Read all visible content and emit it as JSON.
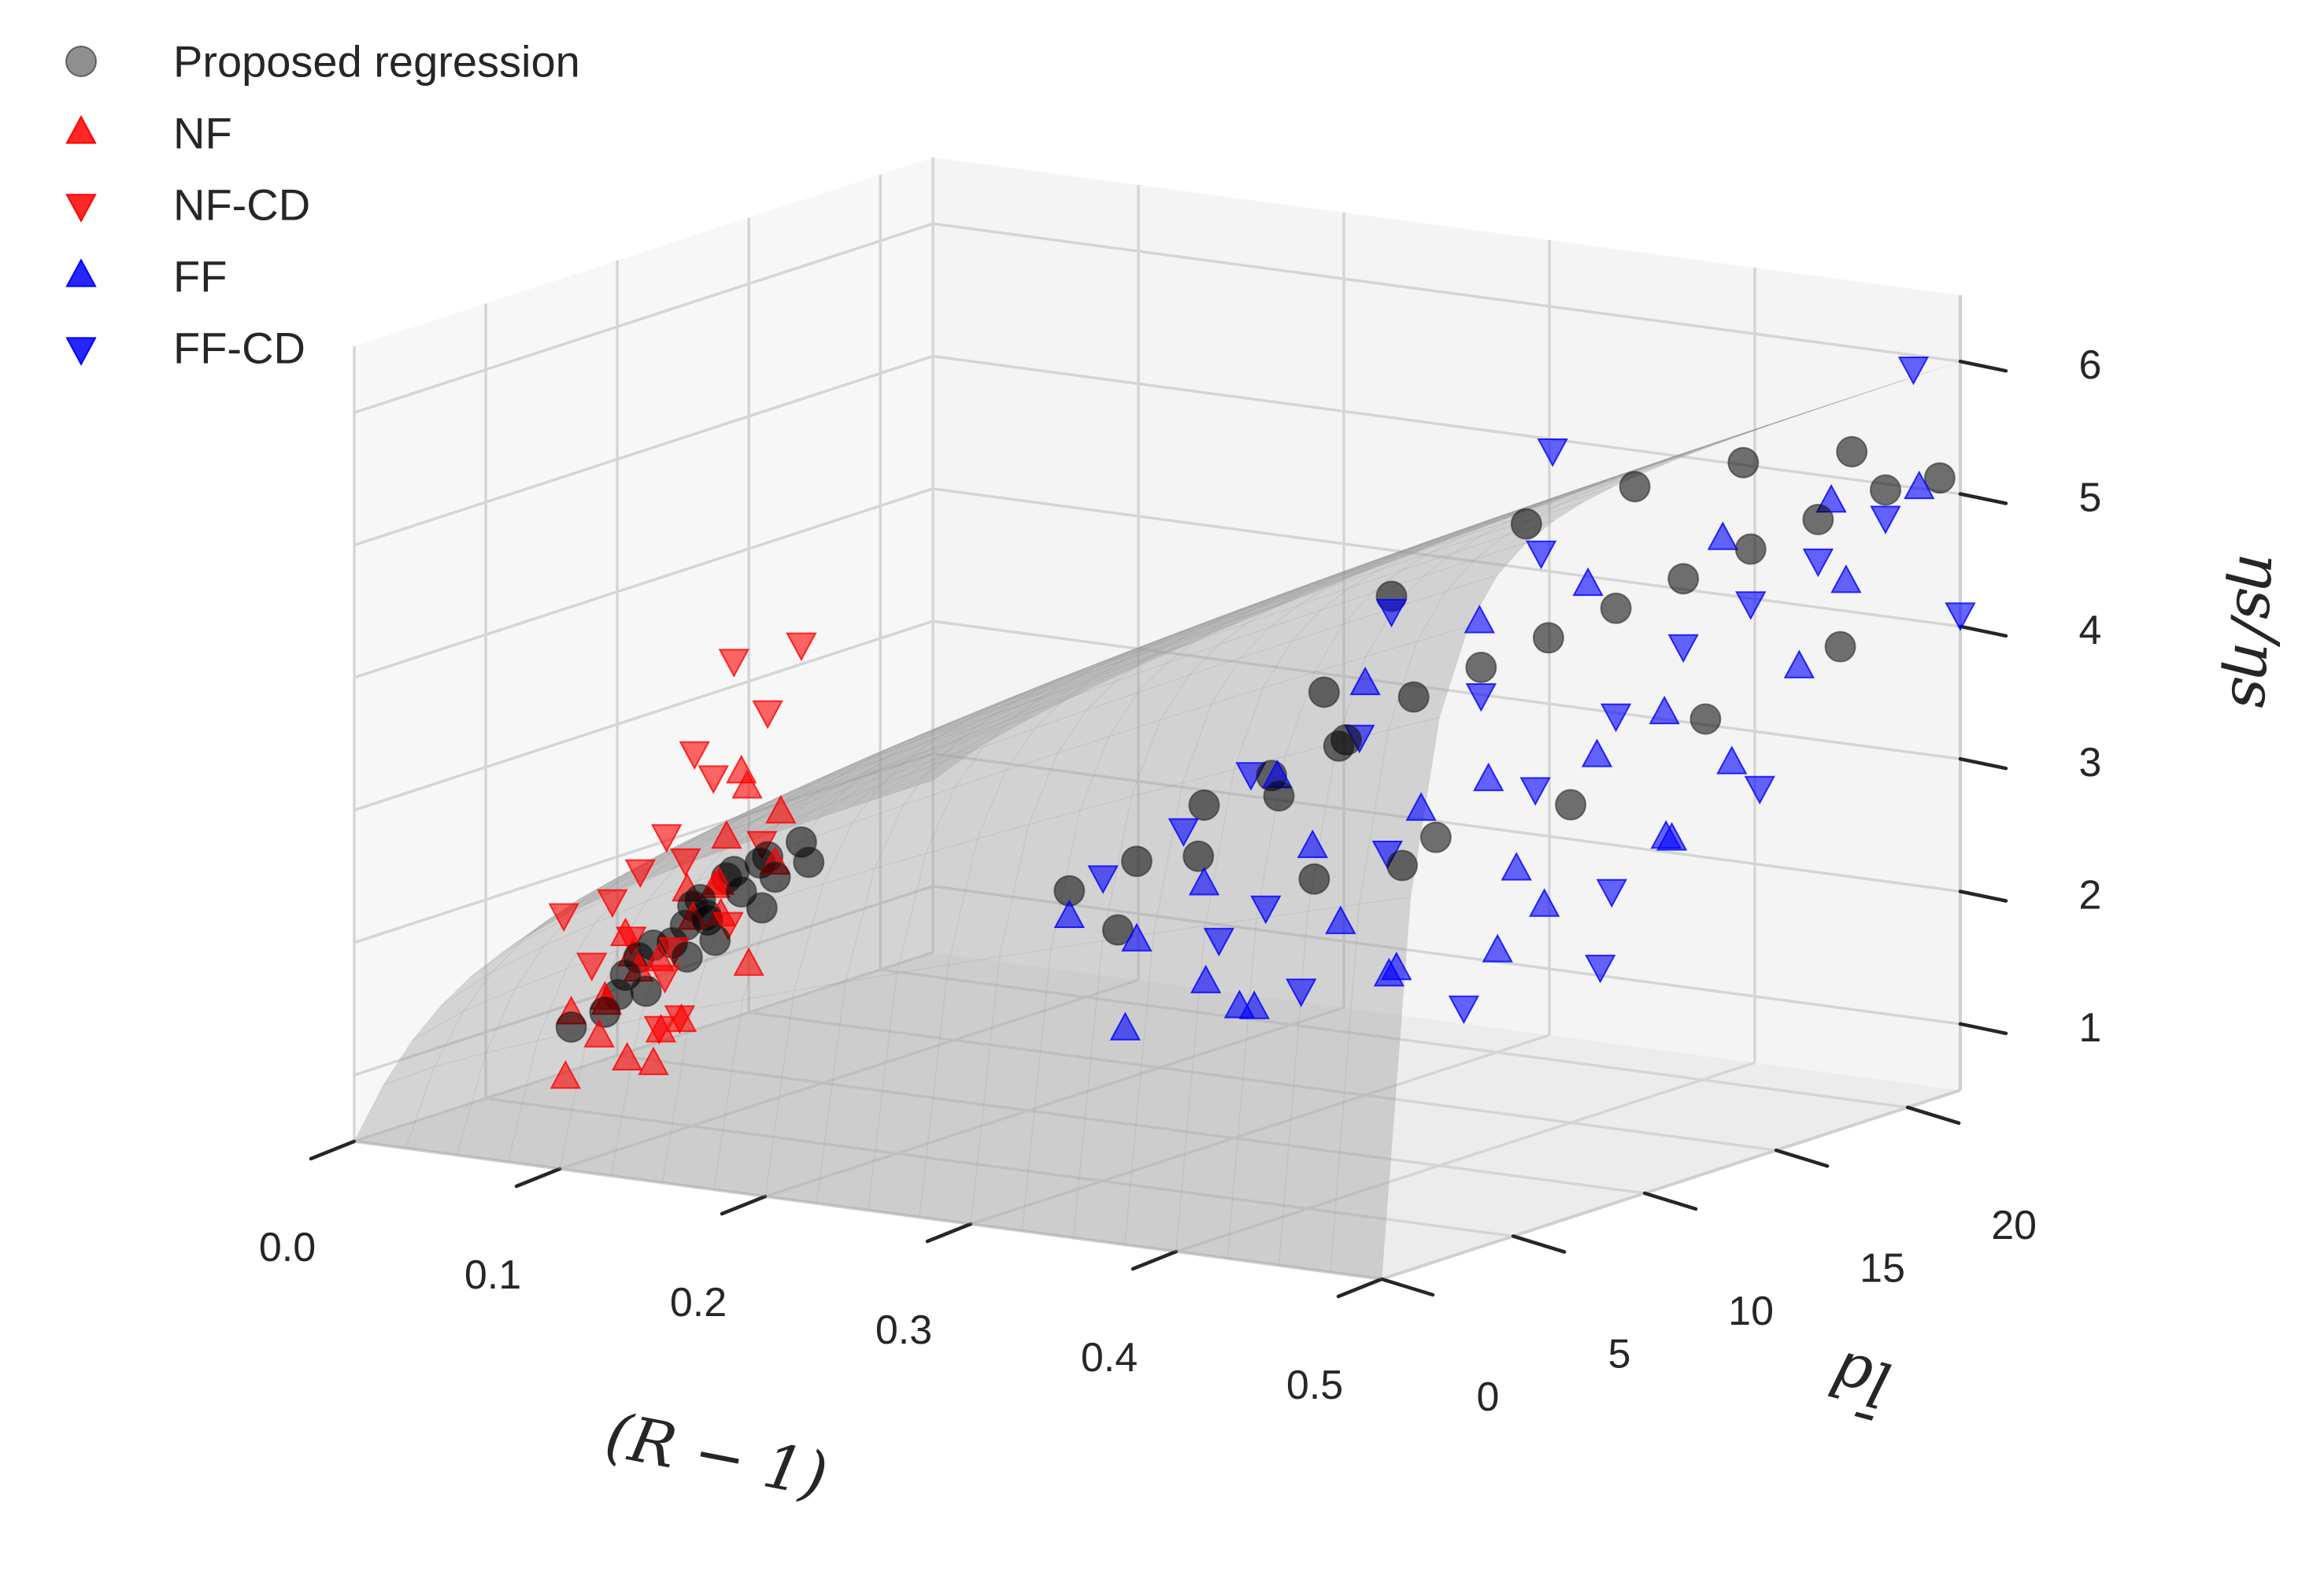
{
  "chart_data": {
    "type": "scatter",
    "projection": "3d",
    "title": "",
    "xlabel": "(R − 1)",
    "ylabel": "l̄d",
    "zlabel": "ηs/ηs",
    "xlim": [
      0.0,
      0.5
    ],
    "ylim": [
      0,
      22
    ],
    "zlim": [
      0.5,
      6.5
    ],
    "xticks": [
      "0.0",
      "0.1",
      "0.2",
      "0.3",
      "0.4",
      "0.5"
    ],
    "yticks": [
      "0",
      "5",
      "10",
      "15",
      "20"
    ],
    "zticks": [
      "1",
      "2",
      "3",
      "4",
      "5",
      "6"
    ],
    "grid": true,
    "legend_position": "top-left",
    "legend": [
      {
        "label": "Proposed regression",
        "marker": "circle",
        "color": "#444444"
      },
      {
        "label": "NF",
        "marker": "triangle-up",
        "color": "#ff0000"
      },
      {
        "label": "NF-CD",
        "marker": "triangle-down",
        "color": "#ff0000"
      },
      {
        "label": "FF",
        "marker": "triangle-up",
        "color": "#0000ff"
      },
      {
        "label": "FF-CD",
        "marker": "triangle-down",
        "color": "#0000ff"
      }
    ],
    "series": [
      {
        "name": "NF",
        "marker": "triangle-up",
        "color": "#ff0000",
        "points": [
          [
            0.08,
            2.0,
            1.5
          ],
          [
            0.09,
            2.5,
            1.6
          ],
          [
            0.1,
            3.0,
            1.8
          ],
          [
            0.1,
            1.5,
            1.4
          ],
          [
            0.11,
            2.0,
            2.0
          ],
          [
            0.12,
            3.5,
            2.2
          ],
          [
            0.12,
            1.0,
            1.3
          ],
          [
            0.13,
            2.5,
            2.5
          ],
          [
            0.13,
            4.0,
            2.8
          ],
          [
            0.14,
            3.0,
            2.3
          ],
          [
            0.14,
            1.5,
            1.6
          ],
          [
            0.15,
            2.0,
            2.6
          ],
          [
            0.15,
            4.5,
            3.0
          ],
          [
            0.16,
            3.5,
            2.7
          ],
          [
            0.09,
            1.0,
            1.1
          ],
          [
            0.11,
            3.0,
            1.9
          ],
          [
            0.12,
            2.0,
            1.2
          ],
          [
            0.14,
            4.0,
            3.2
          ],
          [
            0.1,
            2.5,
            2.1
          ],
          [
            0.13,
            1.5,
            1.5
          ],
          [
            0.16,
            2.5,
            2.0
          ],
          [
            0.12,
            4.5,
            2.4
          ],
          [
            0.11,
            1.0,
            1.7
          ],
          [
            0.15,
            3.0,
            3.4
          ]
        ]
      },
      {
        "name": "NF-CD",
        "marker": "triangle-down",
        "color": "#ff0000",
        "points": [
          [
            0.07,
            2.5,
            2.2
          ],
          [
            0.09,
            3.5,
            2.0
          ],
          [
            0.1,
            2.0,
            2.4
          ],
          [
            0.11,
            4.0,
            2.6
          ],
          [
            0.12,
            2.5,
            2.9
          ],
          [
            0.13,
            3.5,
            3.3
          ],
          [
            0.14,
            2.0,
            3.6
          ],
          [
            0.15,
            4.0,
            3.8
          ],
          [
            0.16,
            3.0,
            2.9
          ],
          [
            0.13,
            2.0,
            2.1
          ],
          [
            0.11,
            3.0,
            1.4
          ],
          [
            0.1,
            4.0,
            1.7
          ],
          [
            0.14,
            3.5,
            4.2
          ],
          [
            0.16,
            4.5,
            4.3
          ],
          [
            0.12,
            3.0,
            1.5
          ],
          [
            0.09,
            2.0,
            1.9
          ],
          [
            0.15,
            2.5,
            2.3
          ],
          [
            0.12,
            1.5,
            2.7
          ]
        ]
      },
      {
        "name": "FF",
        "marker": "triangle-up",
        "color": "#0000ff",
        "points": [
          [
            0.22,
            10.0,
            2.0
          ],
          [
            0.24,
            11.0,
            1.8
          ],
          [
            0.26,
            12.0,
            2.2
          ],
          [
            0.28,
            10.5,
            1.6
          ],
          [
            0.3,
            13.0,
            2.5
          ],
          [
            0.32,
            12.5,
            2.0
          ],
          [
            0.34,
            14.0,
            2.8
          ],
          [
            0.36,
            15.0,
            3.0
          ],
          [
            0.38,
            14.5,
            2.4
          ],
          [
            0.4,
            16.0,
            3.2
          ],
          [
            0.42,
            17.0,
            3.5
          ],
          [
            0.44,
            18.0,
            3.1
          ],
          [
            0.46,
            19.0,
            3.8
          ],
          [
            0.3,
            15.0,
            3.6
          ],
          [
            0.33,
            17.0,
            4.0
          ],
          [
            0.37,
            18.0,
            4.3
          ],
          [
            0.41,
            20.0,
            4.6
          ],
          [
            0.45,
            21.0,
            4.9
          ],
          [
            0.48,
            22.0,
            5.0
          ],
          [
            0.26,
            9.0,
            1.3
          ],
          [
            0.29,
            11.0,
            1.4
          ],
          [
            0.35,
            12.0,
            1.7
          ],
          [
            0.39,
            13.0,
            1.9
          ],
          [
            0.43,
            16.5,
            2.6
          ],
          [
            0.27,
            14.0,
            2.9
          ],
          [
            0.31,
            10.0,
            1.5
          ],
          [
            0.36,
            11.5,
            1.8
          ],
          [
            0.4,
            14.0,
            2.2
          ],
          [
            0.44,
            15.5,
            2.7
          ],
          [
            0.47,
            20.0,
            4.4
          ]
        ]
      },
      {
        "name": "FF-CD",
        "marker": "triangle-down",
        "color": "#0000ff",
        "points": [
          [
            0.23,
            10.5,
            2.3
          ],
          [
            0.25,
            12.0,
            2.6
          ],
          [
            0.27,
            13.0,
            3.0
          ],
          [
            0.29,
            12.0,
            2.1
          ],
          [
            0.31,
            14.0,
            3.3
          ],
          [
            0.33,
            13.5,
            2.5
          ],
          [
            0.35,
            15.5,
            3.6
          ],
          [
            0.37,
            16.0,
            2.9
          ],
          [
            0.39,
            17.5,
            3.4
          ],
          [
            0.41,
            18.5,
            3.9
          ],
          [
            0.43,
            19.5,
            4.2
          ],
          [
            0.45,
            20.5,
            4.5
          ],
          [
            0.47,
            21.5,
            4.8
          ],
          [
            0.34,
            19.0,
            5.2
          ],
          [
            0.49,
            21.0,
            6.0
          ],
          [
            0.3,
            16.0,
            4.1
          ],
          [
            0.36,
            17.0,
            4.6
          ],
          [
            0.42,
            15.0,
            2.3
          ],
          [
            0.28,
            11.0,
            1.9
          ],
          [
            0.32,
            11.0,
            1.6
          ],
          [
            0.38,
            12.5,
            1.5
          ],
          [
            0.46,
            17.5,
            3.0
          ],
          [
            0.5,
            22.0,
            4.1
          ],
          [
            0.44,
            13.0,
            1.9
          ]
        ]
      },
      {
        "name": "Proposed regression",
        "marker": "circle",
        "color": "#000000",
        "points": [
          [
            0.08,
            2.0,
            1.4
          ],
          [
            0.09,
            3.0,
            1.6
          ],
          [
            0.1,
            2.5,
            1.8
          ],
          [
            0.11,
            3.5,
            2.0
          ],
          [
            0.12,
            2.0,
            2.1
          ],
          [
            0.12,
            3.5,
            2.3
          ],
          [
            0.13,
            3.0,
            2.4
          ],
          [
            0.13,
            4.0,
            2.5
          ],
          [
            0.14,
            2.5,
            2.3
          ],
          [
            0.14,
            3.5,
            2.6
          ],
          [
            0.15,
            3.0,
            2.5
          ],
          [
            0.15,
            4.0,
            2.7
          ],
          [
            0.16,
            3.5,
            2.6
          ],
          [
            0.16,
            4.5,
            2.8
          ],
          [
            0.1,
            3.0,
            1.9
          ],
          [
            0.11,
            2.5,
            1.7
          ],
          [
            0.12,
            4.0,
            2.2
          ],
          [
            0.13,
            2.5,
            2.0
          ],
          [
            0.14,
            4.5,
            2.6
          ],
          [
            0.09,
            2.5,
            1.5
          ],
          [
            0.17,
            4.0,
            2.7
          ],
          [
            0.11,
            4.0,
            2.1
          ],
          [
            0.15,
            2.0,
            2.2
          ],
          [
            0.16,
            3.0,
            2.4
          ],
          [
            0.22,
            10.0,
            2.2
          ],
          [
            0.24,
            11.0,
            2.4
          ],
          [
            0.26,
            12.0,
            2.8
          ],
          [
            0.28,
            13.0,
            3.0
          ],
          [
            0.3,
            14.0,
            3.2
          ],
          [
            0.27,
            11.0,
            2.5
          ],
          [
            0.29,
            12.5,
            2.9
          ],
          [
            0.31,
            13.5,
            3.3
          ],
          [
            0.33,
            14.5,
            3.6
          ],
          [
            0.35,
            15.5,
            3.8
          ],
          [
            0.37,
            16.5,
            4.0
          ],
          [
            0.39,
            17.5,
            4.2
          ],
          [
            0.41,
            18.5,
            4.4
          ],
          [
            0.43,
            19.5,
            4.6
          ],
          [
            0.45,
            20.5,
            4.8
          ],
          [
            0.47,
            21.5,
            5.0
          ],
          [
            0.49,
            22.0,
            5.1
          ],
          [
            0.34,
            18.0,
            4.7
          ],
          [
            0.38,
            19.0,
            5.0
          ],
          [
            0.42,
            20.0,
            5.2
          ],
          [
            0.46,
            21.0,
            5.3
          ],
          [
            0.3,
            16.0,
            4.2
          ],
          [
            0.36,
            13.0,
            2.7
          ],
          [
            0.4,
            15.0,
            2.9
          ],
          [
            0.44,
            17.0,
            3.5
          ],
          [
            0.48,
            19.0,
            4.0
          ],
          [
            0.32,
            11.5,
            2.4
          ],
          [
            0.25,
            9.5,
            2.0
          ],
          [
            0.28,
            15.0,
            3.5
          ],
          [
            0.35,
            12.5,
            2.5
          ]
        ]
      }
    ],
    "surface": {
      "name": "regression surface",
      "color": "#9a9a9a",
      "opacity": 0.38,
      "x_range": [
        0.0,
        0.5
      ],
      "y_range": [
        0,
        22
      ],
      "grid_x": 20,
      "grid_y": 20
    }
  }
}
